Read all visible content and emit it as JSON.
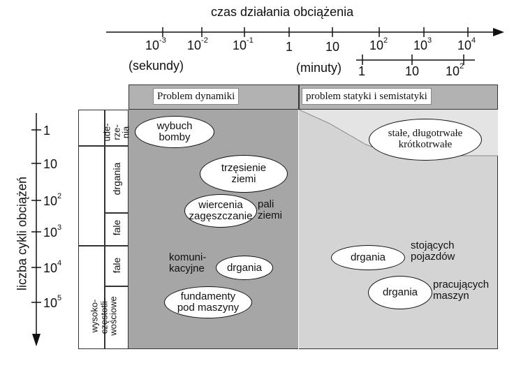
{
  "top_axis": {
    "title": "czas działania obciążenia",
    "seconds_ticks": [
      {
        "base": "10",
        "exp": "-3"
      },
      {
        "base": "10",
        "exp": "-2"
      },
      {
        "base": "10",
        "exp": "-1"
      },
      {
        "base": "1",
        "exp": ""
      },
      {
        "base": "10",
        "exp": ""
      },
      {
        "base": "10",
        "exp": "2"
      },
      {
        "base": "10",
        "exp": "3"
      },
      {
        "base": "10",
        "exp": "4"
      }
    ],
    "seconds_unit": "(sekundy)",
    "minutes_unit": "(minuty)",
    "minutes_ticks": [
      {
        "base": "1",
        "exp": ""
      },
      {
        "base": "10",
        "exp": ""
      },
      {
        "base": "10",
        "exp": "2"
      }
    ]
  },
  "headers": {
    "dynamics": "Problem dynamiki",
    "statics": "problem statyki i semistatyki"
  },
  "left_axis": {
    "title": "liczba cykli obciążeń",
    "ticks": [
      {
        "base": "1",
        "exp": ""
      },
      {
        "base": "10",
        "exp": ""
      },
      {
        "base": "10",
        "exp": "2"
      },
      {
        "base": "10",
        "exp": "3"
      },
      {
        "base": "10",
        "exp": "4"
      },
      {
        "base": "10",
        "exp": "5"
      }
    ]
  },
  "row_labels": {
    "uderzenia": "ude-\nrze-\nnia",
    "drgania": "drgania",
    "fale1": "fale",
    "fale2": "fale",
    "wysoko": "wysoko-\nczęstotli-\nwościowe"
  },
  "items": {
    "wybuch": "wybuch\nbomby",
    "trzesienie": "trzęsienie\nziemi",
    "wiercenia": "wiercenia\nzagęszczanie",
    "pali_ziemi": "pali\nziemi",
    "komunikacyjne": "komuni-\nkacyjne",
    "drgania_kom": "drgania",
    "fundamenty": "fundamenty\npod maszyny",
    "stale": "stałe, długotrwałe\nkrótkotrwałe",
    "drgania_poj": "drgania",
    "stojacych": "stojących\npojazdów",
    "drgania_masz": "drgania",
    "pracujacych": "pracujących\nmaszyn"
  }
}
